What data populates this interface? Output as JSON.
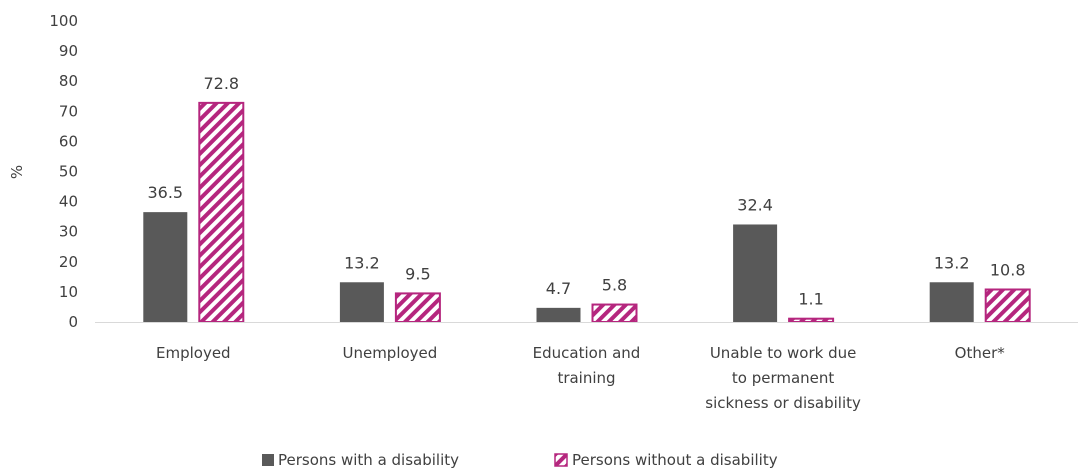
{
  "chart_data": {
    "type": "bar",
    "ylabel": "%",
    "ylim": [
      0,
      100
    ],
    "yticks": [
      0,
      10,
      20,
      30,
      40,
      50,
      60,
      70,
      80,
      90,
      100
    ],
    "categories": [
      [
        "Employed"
      ],
      [
        "Unemployed"
      ],
      [
        "Education and",
        "training"
      ],
      [
        "Unable to work due",
        "to permanent",
        "sickness or disability"
      ],
      [
        "Other*"
      ]
    ],
    "series": [
      {
        "name": "Persons with a disability",
        "values": [
          36.5,
          13.2,
          4.7,
          32.4,
          13.2
        ],
        "labels": [
          "36.5",
          "13.2",
          "4.7",
          "32.4",
          "13.2"
        ],
        "color": "#595959",
        "pattern": "solid"
      },
      {
        "name": "Persons without a disability",
        "values": [
          72.8,
          9.5,
          5.8,
          1.1,
          10.8
        ],
        "labels": [
          "72.8",
          "9.5",
          "5.8",
          "1.1",
          "10.8"
        ],
        "color": "#b5267e",
        "pattern": "hatch"
      }
    ],
    "legend_position": "bottom",
    "grid": false
  }
}
